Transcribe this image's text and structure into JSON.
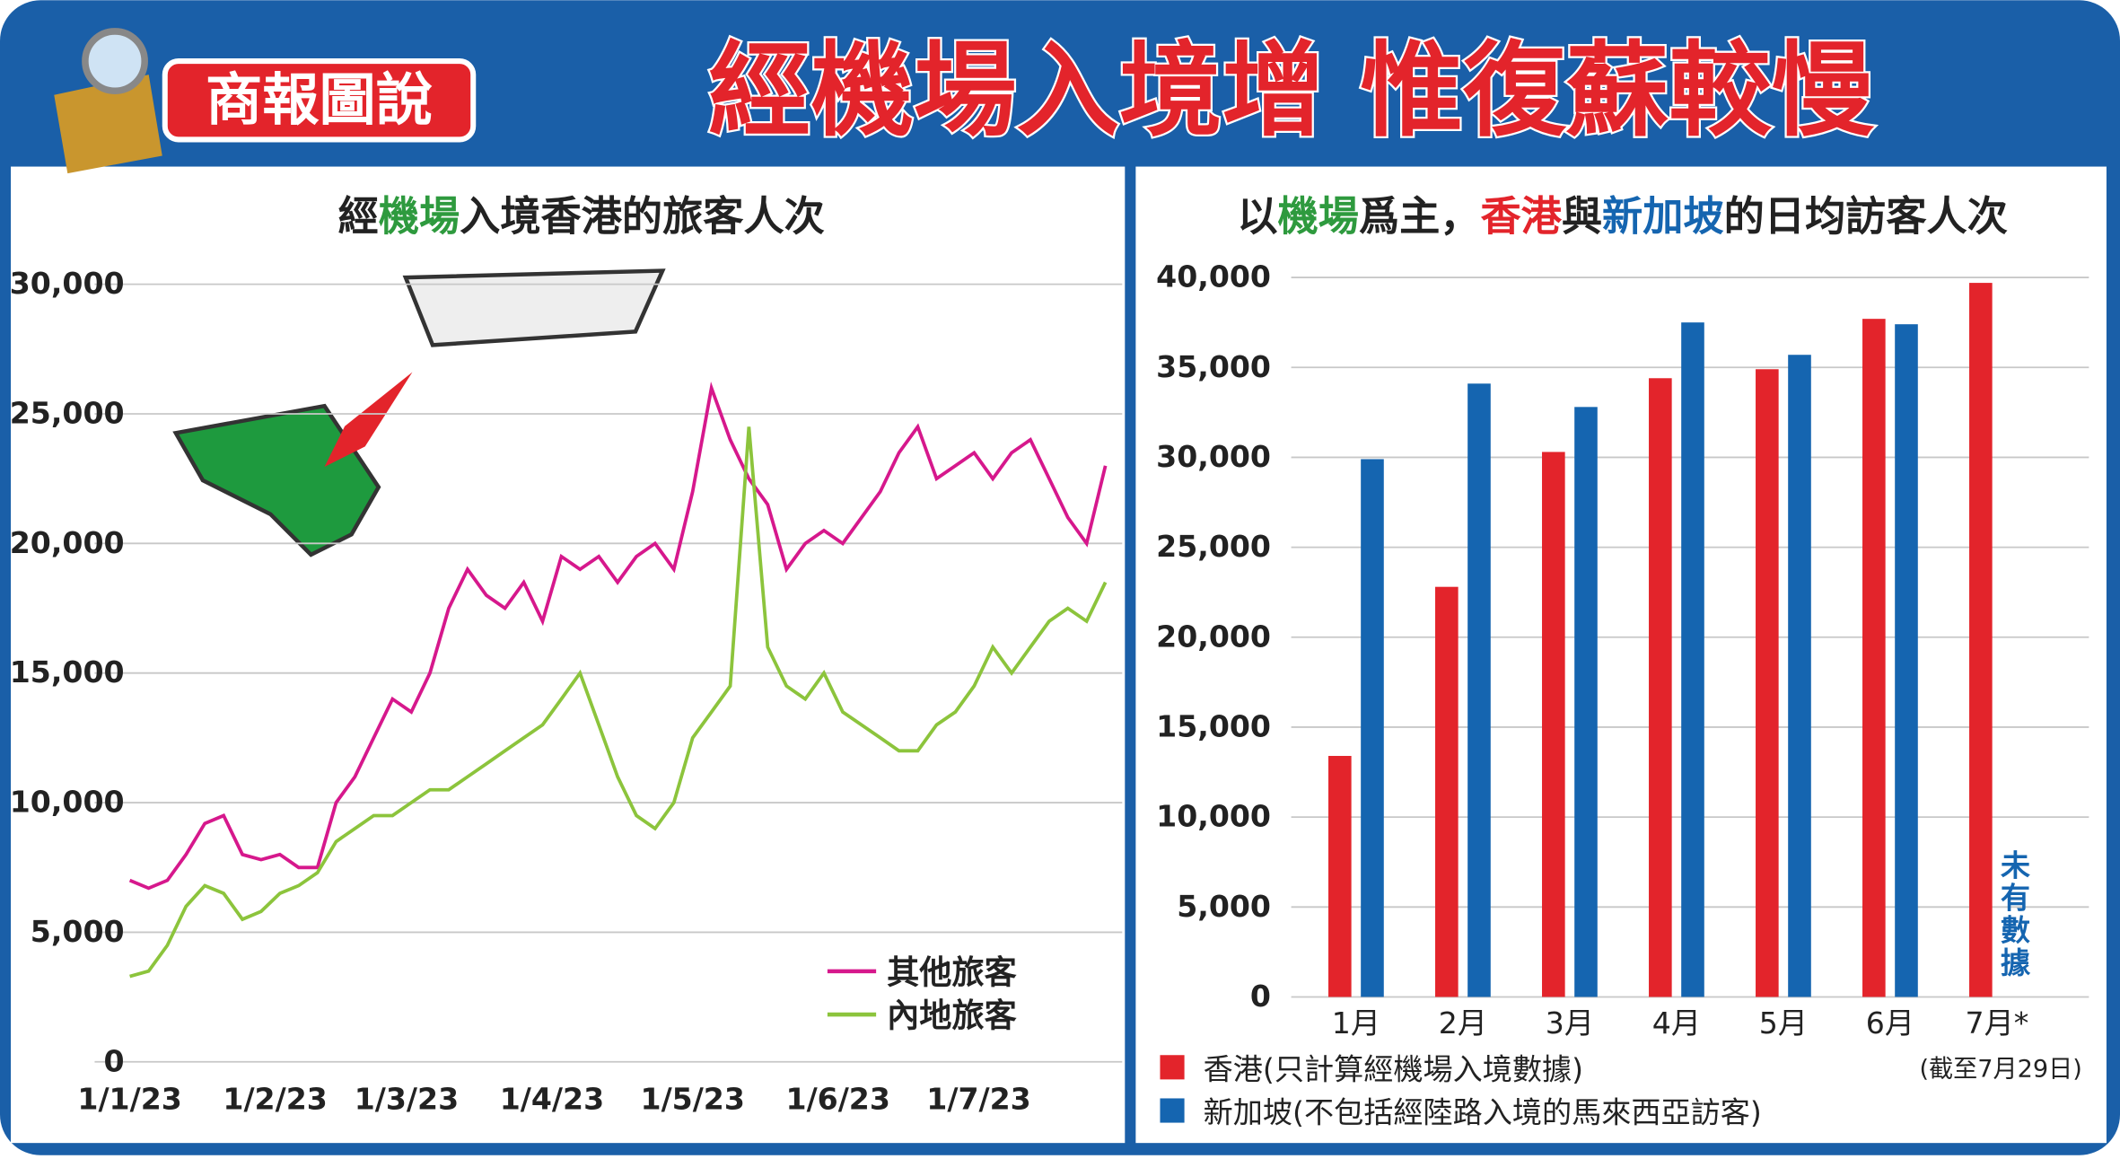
{
  "header": {
    "logo": "商報圖說",
    "title": "經機場入境增 惟復蘇較慢"
  },
  "chart_data": [
    {
      "type": "line",
      "title_parts": [
        "經",
        "機場",
        "入境香港的旅客人次"
      ],
      "title_colors": [
        "#222222",
        "#2e9a3e",
        "#222222"
      ],
      "x": [
        "1/1/23",
        "5/1/23",
        "9/1/23",
        "13/1/23",
        "17/1/23",
        "21/1/23",
        "25/1/23",
        "29/1/23",
        "2/2/23",
        "6/2/23",
        "10/2/23",
        "14/2/23",
        "18/2/23",
        "22/2/23",
        "26/2/23",
        "2/3/23",
        "6/3/23",
        "10/3/23",
        "14/3/23",
        "18/3/23",
        "22/3/23",
        "26/3/23",
        "30/3/23",
        "3/4/23",
        "7/4/23",
        "11/4/23",
        "15/4/23",
        "19/4/23",
        "23/4/23",
        "27/4/23",
        "1/5/23",
        "5/5/23",
        "9/5/23",
        "13/5/23",
        "17/5/23",
        "21/5/23",
        "25/5/23",
        "29/5/23",
        "2/6/23",
        "6/6/23",
        "10/6/23",
        "14/6/23",
        "18/6/23",
        "22/6/23",
        "26/6/23",
        "30/6/23",
        "4/7/23",
        "8/7/23",
        "12/7/23",
        "16/7/23",
        "20/7/23",
        "24/7/23",
        "28/7/23"
      ],
      "series": [
        {
          "name": "其他旅客",
          "color": "#d6188c",
          "values": [
            7000,
            6700,
            7000,
            8000,
            9200,
            9500,
            8000,
            7800,
            8000,
            7500,
            7500,
            10000,
            11000,
            12500,
            14000,
            13500,
            15000,
            17500,
            19000,
            18000,
            17500,
            18500,
            17000,
            19500,
            19000,
            19500,
            18500,
            19500,
            20000,
            19000,
            22000,
            26000,
            24000,
            22500,
            21500,
            19000,
            20000,
            20500,
            20000,
            21000,
            22000,
            23500,
            24500,
            22500,
            23000,
            23500,
            22500,
            23500,
            24000,
            22500,
            21000,
            20000,
            23000
          ]
        },
        {
          "name": "內地旅客",
          "color": "#8cc43c",
          "values": [
            3300,
            3500,
            4500,
            6000,
            6800,
            6500,
            5500,
            5800,
            6500,
            6800,
            7300,
            8500,
            9000,
            9500,
            9500,
            10000,
            10500,
            10500,
            11000,
            11500,
            12000,
            12500,
            13000,
            14000,
            15000,
            13000,
            11000,
            9500,
            9000,
            10000,
            12500,
            13500,
            14500,
            24500,
            16000,
            14500,
            14000,
            15000,
            13500,
            13000,
            12500,
            12000,
            12000,
            13000,
            13500,
            14500,
            16000,
            15000,
            16000,
            17000,
            17500,
            17000,
            18500
          ]
        }
      ],
      "ylim": [
        0,
        30000
      ],
      "yticks": [
        0,
        {
          "value": 5000,
          "label": "5,000"
        },
        {
          "value": 10000,
          "label": "10,000"
        },
        {
          "value": 15000,
          "label": "15,000"
        },
        {
          "value": 20000,
          "label": "20,000"
        },
        {
          "value": 25000,
          "label": "25,000"
        },
        {
          "value": 30000,
          "label": "30,000"
        }
      ],
      "xticks": [
        "1/1/23",
        "1/2/23",
        "1/3/23",
        "1/4/23",
        "1/5/23",
        "1/6/23",
        "1/7/23"
      ],
      "grid": true
    },
    {
      "type": "bar",
      "title_parts": [
        "以",
        "機場",
        "爲主，",
        "香港",
        "與",
        "新加坡",
        "的日均訪客人次"
      ],
      "title_colors": [
        "#222222",
        "#2e9a3e",
        "#222222",
        "#e3242b",
        "#222222",
        "#1565b0",
        "#222222"
      ],
      "categories": [
        "1月",
        "2月",
        "3月",
        "4月",
        "5月",
        "6月",
        "7月*"
      ],
      "series": [
        {
          "name": "香港(只計算經機場入境數據)",
          "color": "#e3242b",
          "values": [
            13400,
            22800,
            30300,
            34400,
            34900,
            37700,
            39700
          ]
        },
        {
          "name": "新加坡(不包括經陸路入境的馬來西亞訪客)",
          "color": "#1565b0",
          "values": [
            29900,
            34100,
            32800,
            37500,
            35700,
            37400,
            null
          ]
        }
      ],
      "annotation": "未有數據",
      "note": "(截至7月29日)",
      "ylim": [
        0,
        40000
      ],
      "yticks": [
        0,
        {
          "value": 5000,
          "label": "5,000"
        },
        {
          "value": 10000,
          "label": "10,000"
        },
        {
          "value": 15000,
          "label": "15,000"
        },
        {
          "value": 20000,
          "label": "20,000"
        },
        {
          "value": 25000,
          "label": "25,000"
        },
        {
          "value": 30000,
          "label": "30,000"
        },
        {
          "value": 35000,
          "label": "35,000"
        },
        {
          "value": 40000,
          "label": "40,000"
        }
      ],
      "grid": true
    }
  ]
}
